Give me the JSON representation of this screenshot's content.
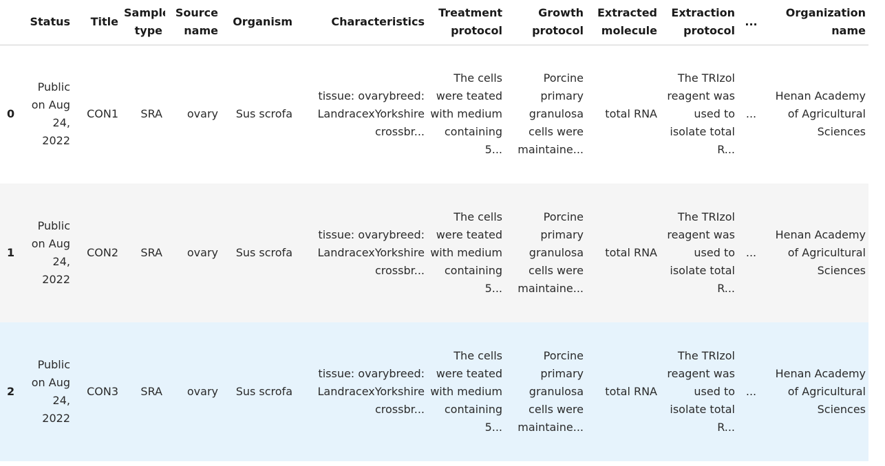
{
  "table": {
    "columns": [
      {
        "key": "index",
        "label": ""
      },
      {
        "key": "status",
        "label": "Status"
      },
      {
        "key": "title",
        "label": "Title"
      },
      {
        "key": "sample_type",
        "label": "Sample type"
      },
      {
        "key": "source_name",
        "label": "Source name"
      },
      {
        "key": "organism",
        "label": "Organism"
      },
      {
        "key": "characteristics",
        "label": "Characteristics"
      },
      {
        "key": "treatment_protocol",
        "label": "Treatment protocol"
      },
      {
        "key": "growth_protocol",
        "label": "Growth protocol"
      },
      {
        "key": "extracted_molecule",
        "label": "Extracted molecule"
      },
      {
        "key": "extraction_protocol",
        "label": "Extraction protocol"
      },
      {
        "key": "ellipsis",
        "label": "..."
      },
      {
        "key": "organization_name",
        "label": "Organization name"
      }
    ],
    "rows": [
      {
        "index": "0",
        "status": "Public on Aug 24, 2022",
        "title": "CON1",
        "sample_type": "SRA",
        "source_name": "ovary",
        "organism": "Sus scrofa",
        "characteristics": "tissue: ovarybreed: LandracexYorkshire crossbr...",
        "treatment_protocol": "The cells were teated with medium containing 5...",
        "growth_protocol": "Porcine primary granulosa cells were maintaine...",
        "extracted_molecule": "total RNA",
        "extraction_protocol": "The TRIzol reagent was used to isolate total R...",
        "ellipsis": "...",
        "organization_name": "Henan Academy of Agricultural Sciences"
      },
      {
        "index": "1",
        "status": "Public on Aug 24, 2022",
        "title": "CON2",
        "sample_type": "SRA",
        "source_name": "ovary",
        "organism": "Sus scrofa",
        "characteristics": "tissue: ovarybreed: LandracexYorkshire crossbr...",
        "treatment_protocol": "The cells were teated with medium containing 5...",
        "growth_protocol": "Porcine primary granulosa cells were maintaine...",
        "extracted_molecule": "total RNA",
        "extraction_protocol": "The TRIzol reagent was used to isolate total R...",
        "ellipsis": "...",
        "organization_name": "Henan Academy of Agricultural Sciences"
      },
      {
        "index": "2",
        "status": "Public on Aug 24, 2022",
        "title": "CON3",
        "sample_type": "SRA",
        "source_name": "ovary",
        "organism": "Sus scrofa",
        "characteristics": "tissue: ovarybreed: LandracexYorkshire crossbr...",
        "treatment_protocol": "The cells were teated with medium containing 5...",
        "growth_protocol": "Porcine primary granulosa cells were maintaine...",
        "extracted_molecule": "total RNA",
        "extraction_protocol": "The TRIzol reagent was used to isolate total R...",
        "ellipsis": "...",
        "organization_name": "Henan Academy of Agricultural Sciences"
      }
    ]
  }
}
